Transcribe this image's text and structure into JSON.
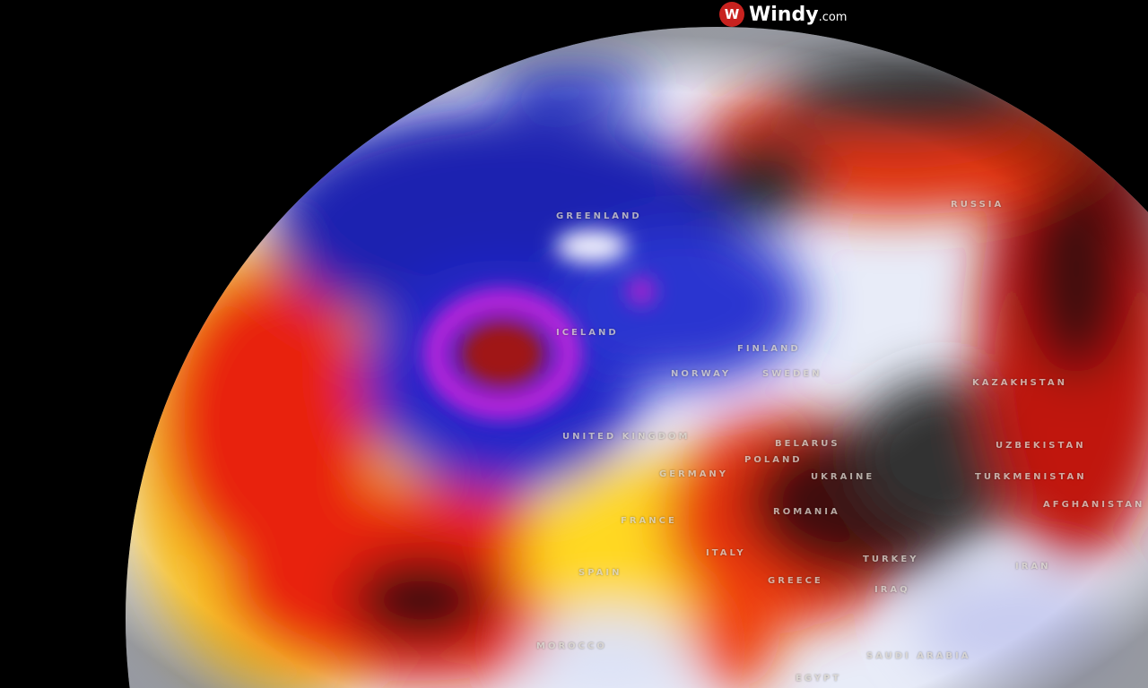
{
  "brand": {
    "name": "Windy",
    "suffix": ".com",
    "logo_text": "W"
  },
  "map": {
    "layer_colors": {
      "cold": "#1a1fb8",
      "very_cold": "#e020e0",
      "neutral": "#e8ecf8",
      "warm": "#ffe020",
      "hot": "#e82008",
      "very_hot": "#2a2a2a"
    },
    "labels": [
      {
        "name": "GREENLAND"
      },
      {
        "name": "ICELAND"
      },
      {
        "name": "FINLAND"
      },
      {
        "name": "NORWAY"
      },
      {
        "name": "SWEDEN"
      },
      {
        "name": "UNITED KINGDOM"
      },
      {
        "name": "RUSSIA"
      },
      {
        "name": "BELARUS"
      },
      {
        "name": "POLAND"
      },
      {
        "name": "GERMANY"
      },
      {
        "name": "UKRAINE"
      },
      {
        "name": "KAZAKHSTAN"
      },
      {
        "name": "UZBEKISTAN"
      },
      {
        "name": "TURKMENISTAN"
      },
      {
        "name": "AFGHANISTAN"
      },
      {
        "name": "FRANCE"
      },
      {
        "name": "ROMANIA"
      },
      {
        "name": "SPAIN"
      },
      {
        "name": "ITALY"
      },
      {
        "name": "GREECE"
      },
      {
        "name": "TURKEY"
      },
      {
        "name": "IRAN"
      },
      {
        "name": "IRAQ"
      },
      {
        "name": "MOROCCO"
      },
      {
        "name": "SAUDI ARABIA"
      },
      {
        "name": "EGYPT"
      }
    ]
  }
}
